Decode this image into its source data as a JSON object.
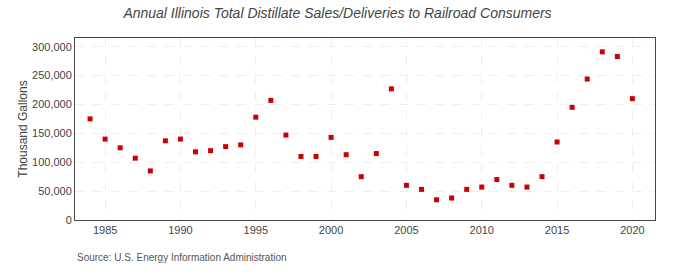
{
  "chart_data": {
    "type": "scatter",
    "title": "Annual Illinois Total Distillate Sales/Deliveries to Railroad Consumers",
    "y_label": "Thousand Gallons",
    "annotations": [
      "Source: U.S. Energy Information Administration"
    ],
    "x": [
      1984,
      1985,
      1986,
      1987,
      1988,
      1989,
      1990,
      1991,
      1992,
      1993,
      1994,
      1995,
      1996,
      1997,
      1998,
      1999,
      2000,
      2001,
      2002,
      2003,
      2004,
      2005,
      2006,
      2007,
      2008,
      2009,
      2010,
      2011,
      2012,
      2013,
      2014,
      2015,
      2016,
      2017,
      2018,
      2019,
      2020
    ],
    "values": [
      175000,
      140000,
      125000,
      107000,
      85000,
      137000,
      140000,
      118000,
      120000,
      127000,
      130000,
      178000,
      207000,
      147000,
      110000,
      110000,
      143000,
      113000,
      75000,
      115000,
      227000,
      60000,
      53000,
      35000,
      38000,
      53000,
      57000,
      70000,
      60000,
      57000,
      75000,
      135000,
      195000,
      244000,
      291000,
      283000,
      210000
    ],
    "color": "#cc0000",
    "marker": "square",
    "xlim": [
      1983,
      2021.5
    ],
    "ylim": [
      0,
      315000
    ],
    "xticks": [
      1985,
      1990,
      1995,
      2000,
      2005,
      2010,
      2015,
      2020
    ],
    "yticks": [
      0,
      {
        "value": 50000,
        "label": "50,000"
      },
      {
        "value": 100000,
        "label": "100,000"
      },
      {
        "value": 150000,
        "label": "150,000"
      },
      {
        "value": 200000,
        "label": "200,000"
      },
      {
        "value": 250000,
        "label": "250,000"
      },
      {
        "value": 300000,
        "label": "300,000"
      }
    ],
    "grid": true
  }
}
